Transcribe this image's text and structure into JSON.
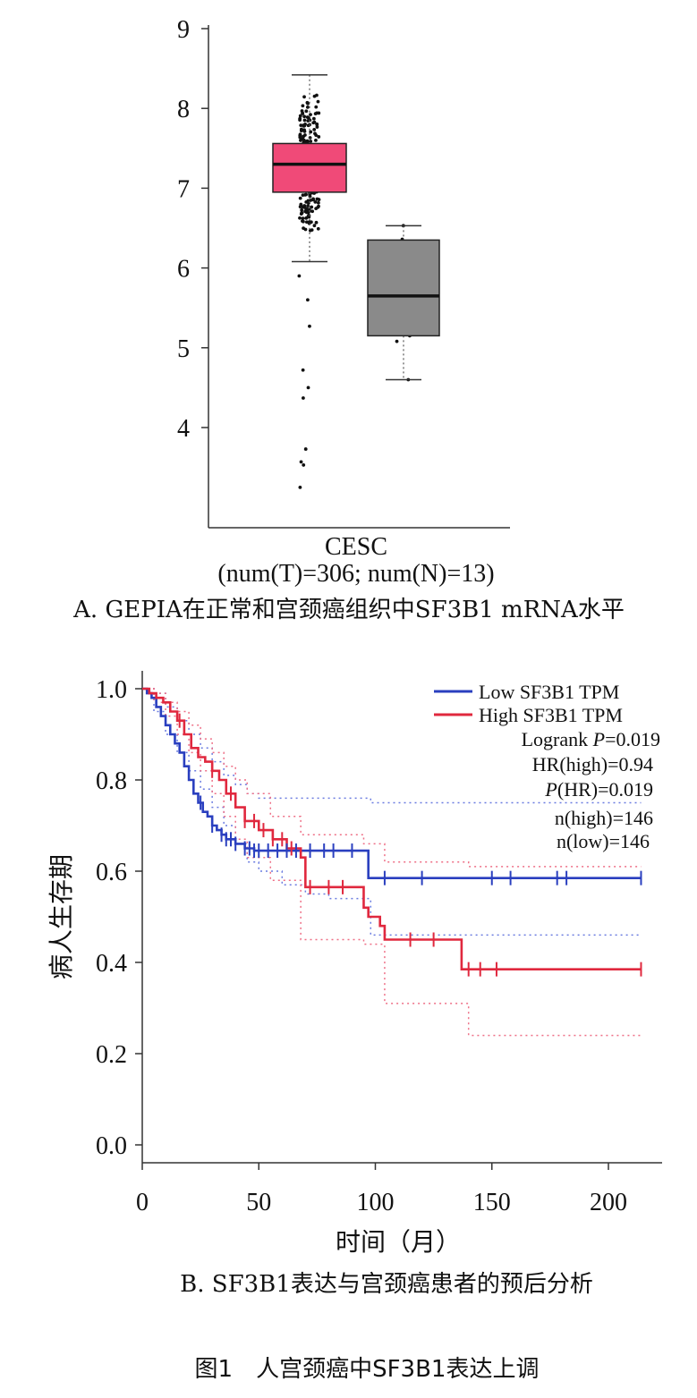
{
  "chart_data": [
    {
      "type": "box",
      "category": "CESC",
      "xlabel": "(num(T)=306; num(N)=13)",
      "yticks": [
        4,
        5,
        6,
        7,
        8,
        9
      ],
      "ylim": [
        2.8,
        9.2
      ],
      "caption": "A. GEPIA在正常和宫颈癌组织中SF3B1 mRNA水平",
      "boxes": [
        {
          "group": "T",
          "color": "#f04a78",
          "min": 6.08,
          "q1": 6.95,
          "median": 7.3,
          "q3": 7.56,
          "max": 8.42
        },
        {
          "group": "N",
          "color": "#8a8a8a",
          "min": 4.6,
          "q1": 5.15,
          "median": 5.65,
          "q3": 6.35,
          "max": 6.53
        }
      ],
      "outliers_T": [
        5.9,
        5.6,
        5.27,
        4.72,
        4.5,
        4.37,
        3.73,
        3.57,
        3.53,
        3.25
      ],
      "points_N": [
        6.53,
        6.36,
        6.33,
        6.18,
        5.65,
        5.15,
        5.08,
        4.6
      ]
    },
    {
      "type": "line",
      "subtype": "kaplan-meier",
      "xlabel": "时间（月）",
      "ylabel": "病人生存期",
      "xticks": [
        0,
        50,
        100,
        150,
        200
      ],
      "yticks": [
        "0.0",
        "0.2",
        "0.4",
        "0.6",
        "0.8",
        "1.0"
      ],
      "xlim": [
        0,
        222
      ],
      "ylim": [
        0,
        1.05
      ],
      "caption": "B. SF3B1表达与宫颈癌患者的预后分析",
      "legend": [
        {
          "label": "Low SF3B1 TPM",
          "color": "#2a3fbf"
        },
        {
          "label": "High SF3B1 TPM",
          "color": "#e0283e"
        }
      ],
      "stats": {
        "logrank_prefix": "Logrank ",
        "logrank_p_symbol": "P",
        "logrank_value": "=0.019",
        "hr": "HR(high)=0.94",
        "phr_symbol": "P",
        "phr_value": "(HR)=0.019",
        "n_high": "n(high)=146",
        "n_low": "n(low)=146"
      },
      "series": [
        {
          "name": "Low SF3B1 TPM",
          "color": "#2a3fbf",
          "x": [
            0,
            2,
            4,
            6,
            8,
            10,
            12,
            14,
            16,
            18,
            20,
            22,
            24,
            26,
            28,
            30,
            32,
            34,
            36,
            40,
            44,
            48,
            97,
            214
          ],
          "y": [
            1.0,
            0.99,
            0.98,
            0.96,
            0.94,
            0.92,
            0.9,
            0.88,
            0.86,
            0.83,
            0.8,
            0.77,
            0.75,
            0.73,
            0.72,
            0.7,
            0.69,
            0.68,
            0.67,
            0.66,
            0.65,
            0.645,
            0.585,
            0.585
          ],
          "censor": [
            25,
            30,
            34,
            36,
            38,
            40,
            44,
            46,
            48,
            50,
            54,
            58,
            62,
            66,
            72,
            78,
            82,
            90,
            104,
            120,
            150,
            158,
            178,
            182,
            214
          ],
          "ci_upper": [
            1.0,
            0.99,
            0.96,
            0.93,
            0.9,
            0.87,
            0.84,
            0.81,
            0.79,
            0.77,
            0.76,
            0.76,
            0.76,
            0.76,
            0.76,
            0.75,
            0.75,
            0.75,
            0.75
          ],
          "ci_lower": [
            1.0,
            0.95,
            0.9,
            0.86,
            0.82,
            0.78,
            0.74,
            0.7,
            0.66,
            0.62,
            0.6,
            0.57,
            0.55,
            0.54,
            0.54,
            0.46,
            0.46,
            0.46,
            0.46
          ],
          "ci_x": [
            0,
            5,
            10,
            15,
            20,
            25,
            30,
            35,
            40,
            45,
            50,
            60,
            70,
            80,
            90,
            98,
            130,
            180,
            214
          ]
        },
        {
          "name": "High SF3B1 TPM",
          "color": "#e0283e",
          "x": [
            0,
            3,
            6,
            9,
            12,
            15,
            18,
            21,
            24,
            27,
            30,
            33,
            36,
            40,
            44,
            50,
            56,
            62,
            68,
            70,
            95,
            97,
            102,
            104,
            137,
            214
          ],
          "y": [
            1.0,
            0.99,
            0.98,
            0.97,
            0.95,
            0.93,
            0.9,
            0.87,
            0.85,
            0.84,
            0.82,
            0.8,
            0.77,
            0.74,
            0.71,
            0.69,
            0.67,
            0.65,
            0.63,
            0.565,
            0.52,
            0.5,
            0.48,
            0.45,
            0.385,
            0.385
          ],
          "censor": [
            16,
            30,
            38,
            44,
            48,
            52,
            56,
            60,
            64,
            72,
            80,
            86,
            115,
            125,
            140,
            145,
            152,
            214
          ],
          "ci_upper": [
            1.0,
            0.99,
            0.97,
            0.95,
            0.92,
            0.89,
            0.86,
            0.83,
            0.8,
            0.77,
            0.72,
            0.68,
            0.66,
            0.62,
            0.62,
            0.61,
            0.61
          ],
          "ci_lower": [
            1.0,
            0.97,
            0.94,
            0.9,
            0.86,
            0.82,
            0.77,
            0.72,
            0.67,
            0.63,
            0.58,
            0.45,
            0.44,
            0.31,
            0.31,
            0.24,
            0.24
          ],
          "ci_x": [
            0,
            5,
            10,
            15,
            20,
            25,
            30,
            35,
            40,
            45,
            55,
            68,
            95,
            104,
            137,
            140,
            214
          ]
        }
      ]
    }
  ],
  "figure_caption": "图1　人宫颈癌中SF3B1表达上调"
}
